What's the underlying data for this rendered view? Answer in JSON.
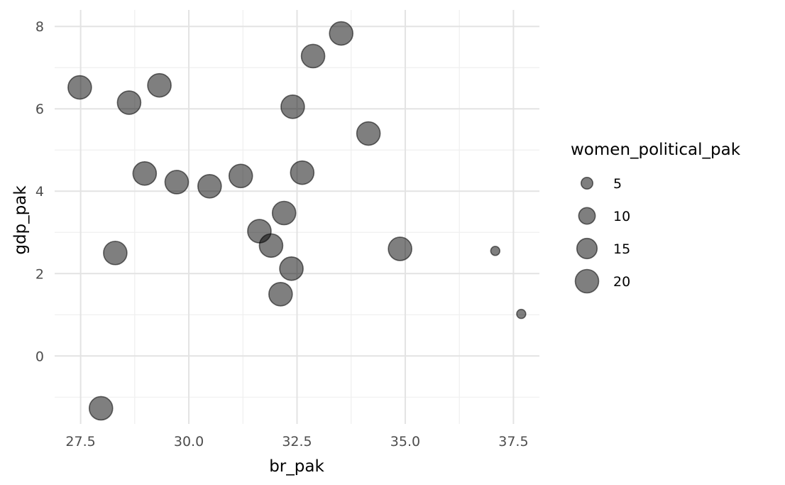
{
  "chart_data": {
    "type": "scatter",
    "title": "",
    "xlabel": "br_pak",
    "ylabel": "gdp_pak",
    "xlim": [
      26.9,
      38.1
    ],
    "ylim": [
      -1.65,
      8.4
    ],
    "x_ticks": [
      27.5,
      30.0,
      32.5,
      35.0,
      37.5
    ],
    "x_tick_labels": [
      "27.5",
      "30.0",
      "32.5",
      "35.0",
      "37.5"
    ],
    "y_ticks": [
      0,
      2,
      4,
      6,
      8
    ],
    "y_tick_labels": [
      "0",
      "2",
      "4",
      "6",
      "8"
    ],
    "grid": true,
    "size_variable": "women_political_pak",
    "legend": {
      "title": "women_political_pak",
      "placement": "right",
      "entries": [
        {
          "label": "5",
          "value": 5
        },
        {
          "label": "10",
          "value": 10
        },
        {
          "label": "15",
          "value": 15
        },
        {
          "label": "20",
          "value": 20
        }
      ]
    },
    "size_range": [
      3,
      22
    ],
    "points": [
      {
        "x": 27.48,
        "y": 6.52,
        "size": 20
      },
      {
        "x": 27.97,
        "y": -1.27,
        "size": 20
      },
      {
        "x": 28.3,
        "y": 2.5,
        "size": 20
      },
      {
        "x": 28.62,
        "y": 6.15,
        "size": 20
      },
      {
        "x": 28.98,
        "y": 4.43,
        "size": 20
      },
      {
        "x": 29.32,
        "y": 6.57,
        "size": 20
      },
      {
        "x": 29.72,
        "y": 4.22,
        "size": 20
      },
      {
        "x": 30.48,
        "y": 4.12,
        "size": 20
      },
      {
        "x": 31.2,
        "y": 4.37,
        "size": 20
      },
      {
        "x": 31.63,
        "y": 3.03,
        "size": 20
      },
      {
        "x": 31.9,
        "y": 2.68,
        "size": 20
      },
      {
        "x": 32.12,
        "y": 1.5,
        "size": 20
      },
      {
        "x": 32.2,
        "y": 3.47,
        "size": 20
      },
      {
        "x": 32.37,
        "y": 2.12,
        "size": 20
      },
      {
        "x": 32.4,
        "y": 6.05,
        "size": 20
      },
      {
        "x": 32.62,
        "y": 4.45,
        "size": 20
      },
      {
        "x": 32.87,
        "y": 7.28,
        "size": 20
      },
      {
        "x": 33.52,
        "y": 7.83,
        "size": 20
      },
      {
        "x": 34.15,
        "y": 5.4,
        "size": 20
      },
      {
        "x": 34.88,
        "y": 2.6,
        "size": 20
      },
      {
        "x": 37.08,
        "y": 2.55,
        "size": 3
      },
      {
        "x": 37.68,
        "y": 1.02,
        "size": 3
      }
    ]
  }
}
